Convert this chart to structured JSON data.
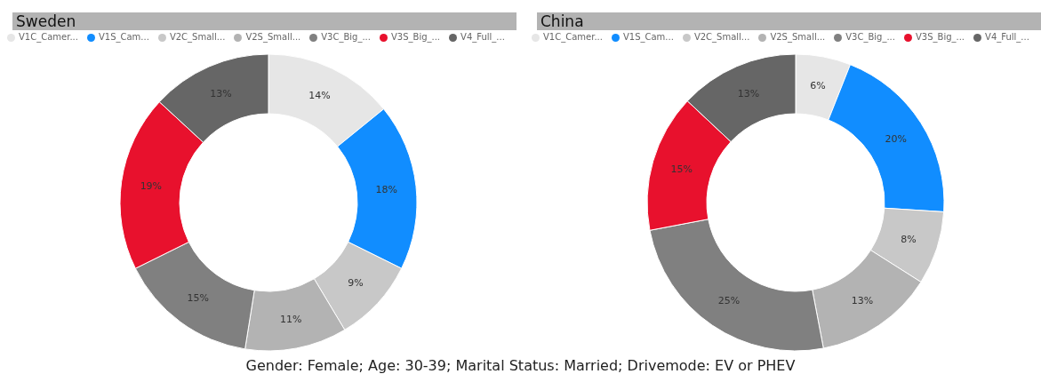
{
  "chart_data": [
    {
      "type": "donut",
      "title": "Sweden",
      "categories": [
        "V1C_Camer...",
        "V1S_Cam...",
        "V2C_Small...",
        "V2S_Small...",
        "V3C_Big_...",
        "V3S_Big_...",
        "V4_Full_..."
      ],
      "values": [
        14,
        18,
        9,
        11,
        15,
        19,
        13
      ],
      "value_labels": [
        "14%",
        "18%",
        "9%",
        "11%",
        "15%",
        "19%",
        "13%"
      ],
      "colors": [
        "#e6e6e6",
        "#118dff",
        "#c8c8c8",
        "#b3b3b3",
        "#808080",
        "#e8112d",
        "#666666"
      ],
      "legend": "top left"
    },
    {
      "type": "donut",
      "title": "China",
      "categories": [
        "V1C_Camer...",
        "V1S_Cam...",
        "V2C_Small...",
        "V2S_Small...",
        "V3C_Big_...",
        "V3S_Big_...",
        "V4_Full_..."
      ],
      "values": [
        6,
        20,
        8,
        13,
        25,
        15,
        13
      ],
      "value_labels": [
        "6%",
        "20%",
        "8%",
        "13%",
        "25%",
        "15%",
        "13%"
      ],
      "colors": [
        "#e6e6e6",
        "#118dff",
        "#c8c8c8",
        "#b3b3b3",
        "#808080",
        "#e8112d",
        "#666666"
      ],
      "legend": "top left",
      "annotations": [
        "Gender: Female; Age: 30-39; Marital Status: Married; Drivemode: EV or PHEV"
      ]
    }
  ]
}
